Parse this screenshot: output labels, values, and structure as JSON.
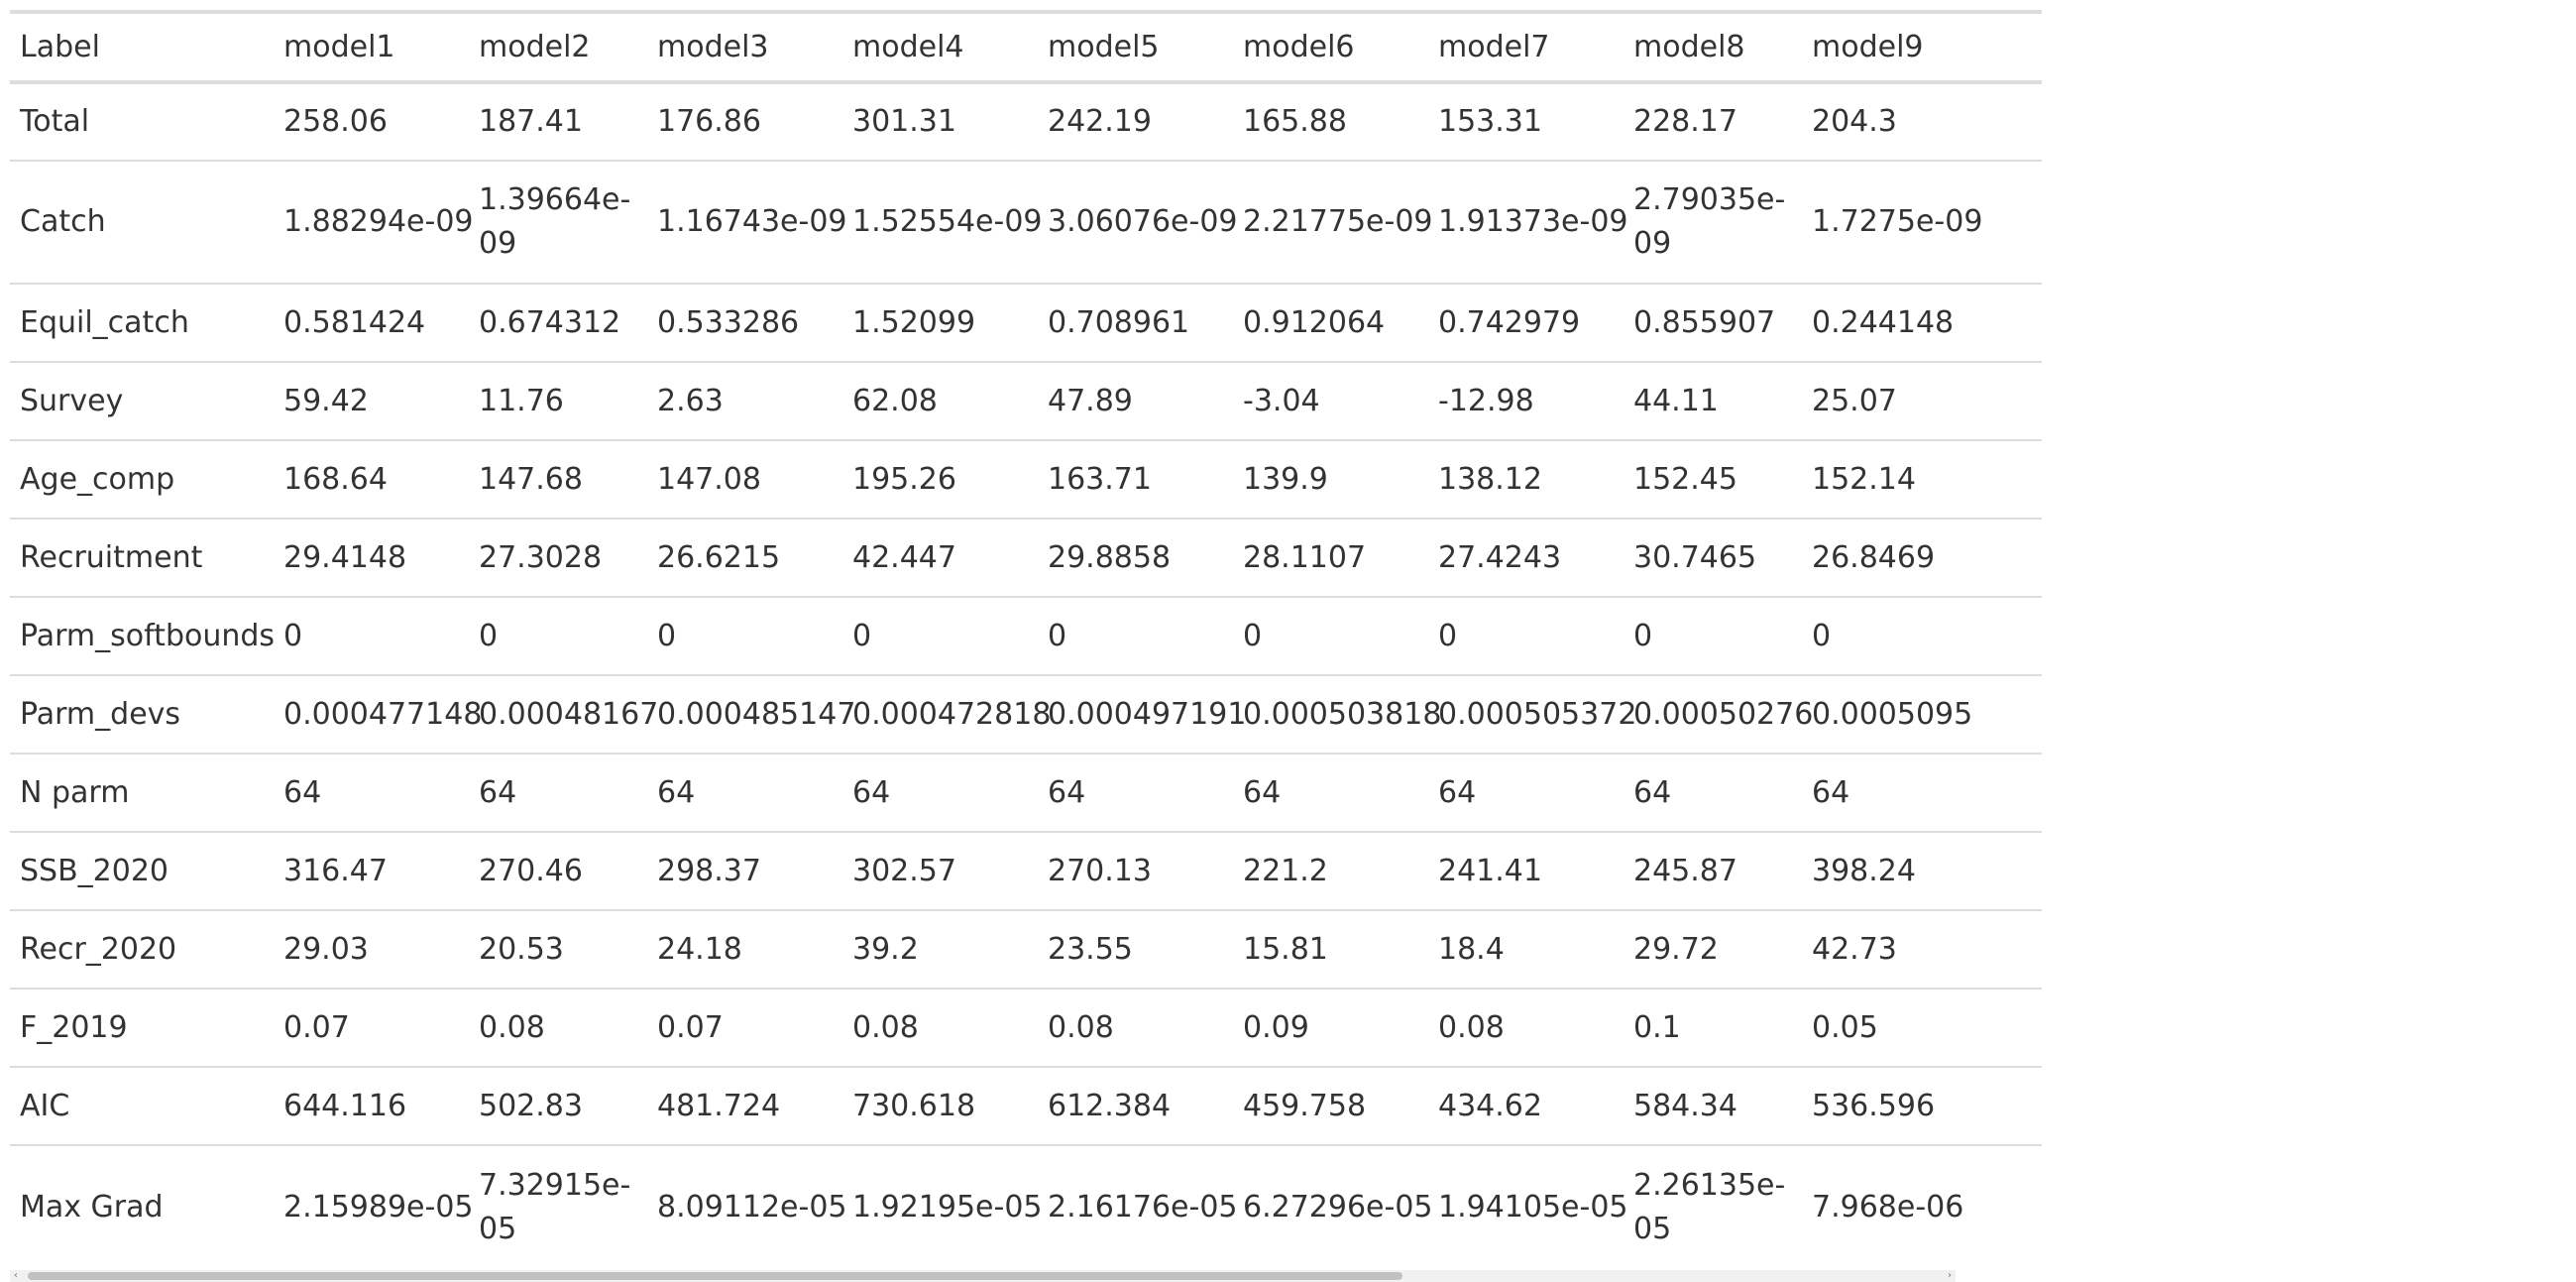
{
  "table": {
    "headers": [
      "Label",
      "model1",
      "model2",
      "model3",
      "model4",
      "model5",
      "model6",
      "model7",
      "model8",
      "model9"
    ],
    "rows": [
      [
        "Total",
        "258.06",
        "187.41",
        "176.86",
        "301.31",
        "242.19",
        "165.88",
        "153.31",
        "228.17",
        "204.3"
      ],
      [
        "Catch",
        "1.88294e-09",
        "1.39664e-09",
        "1.16743e-09",
        "1.52554e-09",
        "3.06076e-09",
        "2.21775e-09",
        "1.91373e-09",
        "2.79035e-09",
        "1.7275e-09"
      ],
      [
        "Equil_catch",
        "0.581424",
        "0.674312",
        "0.533286",
        "1.52099",
        "0.708961",
        "0.912064",
        "0.742979",
        "0.855907",
        "0.244148"
      ],
      [
        "Survey",
        "59.42",
        "11.76",
        "2.63",
        "62.08",
        "47.89",
        "-3.04",
        "-12.98",
        "44.11",
        "25.07"
      ],
      [
        "Age_comp",
        "168.64",
        "147.68",
        "147.08",
        "195.26",
        "163.71",
        "139.9",
        "138.12",
        "152.45",
        "152.14"
      ],
      [
        "Recruitment",
        "29.4148",
        "27.3028",
        "26.6215",
        "42.447",
        "29.8858",
        "28.1107",
        "27.4243",
        "30.7465",
        "26.8469"
      ],
      [
        "Parm_softbounds",
        "0",
        "0",
        "0",
        "0",
        "0",
        "0",
        "0",
        "0",
        "0"
      ],
      [
        "Parm_devs",
        "0.000477148",
        "0.00048167",
        "0.000485147",
        "0.000472818",
        "0.000497191",
        "0.000503818",
        "0.000505372",
        "0.00050276",
        "0.0005095"
      ],
      [
        "N parm",
        "64",
        "64",
        "64",
        "64",
        "64",
        "64",
        "64",
        "64",
        "64"
      ],
      [
        "SSB_2020",
        "316.47",
        "270.46",
        "298.37",
        "302.57",
        "270.13",
        "221.2",
        "241.41",
        "245.87",
        "398.24"
      ],
      [
        "Recr_2020",
        "29.03",
        "20.53",
        "24.18",
        "39.2",
        "23.55",
        "15.81",
        "18.4",
        "29.72",
        "42.73"
      ],
      [
        "F_2019",
        "0.07",
        "0.08",
        "0.07",
        "0.08",
        "0.08",
        "0.09",
        "0.08",
        "0.1",
        "0.05"
      ],
      [
        "AIC",
        "644.116",
        "502.83",
        "481.724",
        "730.618",
        "612.384",
        "459.758",
        "434.62",
        "584.34",
        "536.596"
      ],
      [
        "Max Grad",
        "2.15989e-05",
        "7.32915e-05",
        "8.09112e-05",
        "1.92195e-05",
        "2.16176e-05",
        "6.27296e-05",
        "1.94105e-05",
        "2.26135e-05",
        "7.968e-06"
      ]
    ]
  },
  "scrollbar": {
    "left_arrow_icon": "‹",
    "right_arrow_icon": "›",
    "position": 0.0,
    "visible_fraction": 0.72
  }
}
